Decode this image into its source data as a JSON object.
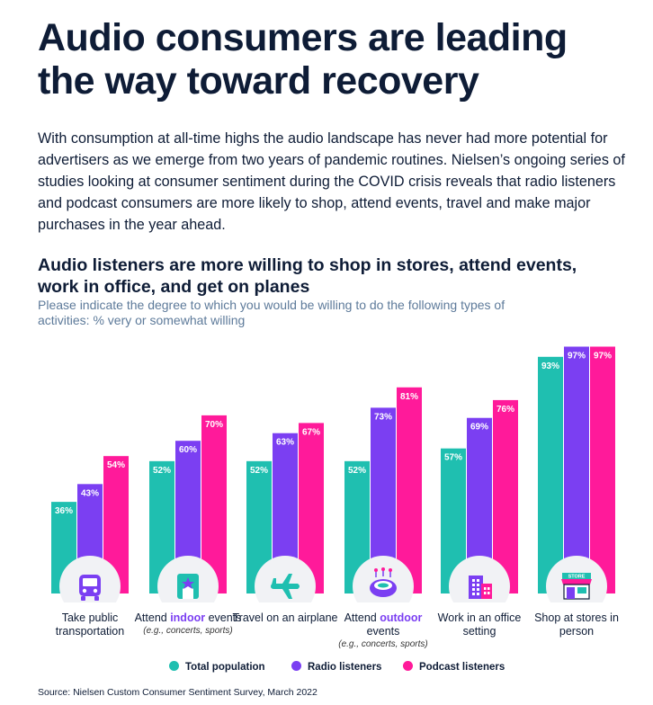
{
  "title": "Audio consumers are leading the way toward recovery",
  "intro": "With consumption at all-time highs the audio landscape has never had more potential for advertisers as we emerge from two years of pandemic routines. Nielsen’s ongoing series of studies looking at consumer sentiment during the COVID crisis reveals that radio listeners and podcast consumers are more likely to shop, attend events, travel and make major purchases in the year ahead.",
  "subtitle": "Audio listeners are more willing to shop in stores, attend events, work in office, and get on planes",
  "question": "Please indicate the degree to which you would be willing to do the following types of activities: % very or somewhat willing",
  "categories": [
    {
      "pre": "Take public transportation",
      "hl": "",
      "post": "",
      "note": "",
      "icon": "bus-icon"
    },
    {
      "pre": "Attend ",
      "hl": "indoor",
      "post": " events",
      "note": "(e.g., concerts, sports)",
      "icon": "theater-ticket-icon"
    },
    {
      "pre": "Travel on an airplane",
      "hl": "",
      "post": "",
      "note": "",
      "icon": "airplane-icon"
    },
    {
      "pre": "Attend ",
      "hl": "outdoor",
      "post": " events",
      "note": "(e.g., concerts, sports)",
      "icon": "stadium-icon"
    },
    {
      "pre": "Work in an office setting",
      "hl": "",
      "post": "",
      "note": "",
      "icon": "office-building-icon"
    },
    {
      "pre": "Shop at stores in person",
      "hl": "",
      "post": "",
      "note": "",
      "icon": "store-icon"
    }
  ],
  "store_sign": "STORE",
  "legend": [
    "Total population",
    "Radio listeners",
    "Podcast listeners"
  ],
  "source": "Source: Nielsen Custom Consumer Sentiment Survey, March 2022",
  "colors": {
    "total": "#1fbfb0",
    "radio": "#7b3ff2",
    "podcast": "#ff1a9a",
    "navy": "#0e1c36",
    "circle": "#f1f2f5"
  },
  "chart_data": {
    "type": "bar",
    "categories": [
      "Take public transportation",
      "Attend indoor events",
      "Travel on an airplane",
      "Attend outdoor events",
      "Work in an office setting",
      "Shop at stores in person"
    ],
    "series": [
      {
        "name": "Total population",
        "values": [
          36,
          52,
          52,
          52,
          57,
          93
        ]
      },
      {
        "name": "Radio listeners",
        "values": [
          43,
          60,
          63,
          73,
          69,
          97
        ]
      },
      {
        "name": "Podcast listeners",
        "values": [
          54,
          70,
          67,
          81,
          76,
          97
        ]
      }
    ],
    "value_suffix": "%",
    "ylim": [
      0,
      100
    ],
    "grid": false,
    "legend_position": "bottom"
  }
}
